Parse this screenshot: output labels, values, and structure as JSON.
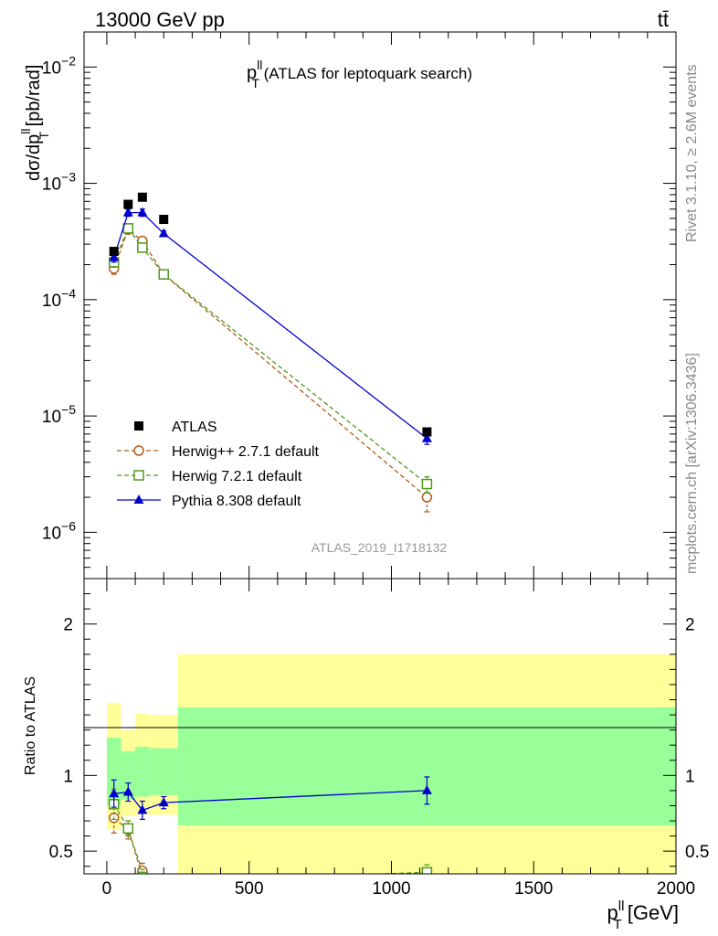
{
  "header": {
    "left": "13000 GeV pp",
    "right": "tt̄"
  },
  "side_labels": {
    "rivet": "Rivet 3.1.10, ≥ 2.6M events",
    "mcplots": "mcplots.cern.ch [arXiv:1306.3436]"
  },
  "colors": {
    "atlas": "#000000",
    "herwigpp": "#b25d1a",
    "herwig7": "#4f9a1c",
    "pythia": "#0000cc",
    "band_inner": "#99ff99",
    "band_outer": "#ffff99",
    "side_text": "#888888"
  },
  "chart_data": [
    {
      "type": "scatter",
      "title_main": "p",
      "title_sup": "ll",
      "title_sub": "T",
      "title_rest": " (ATLAS for leptoquark search)",
      "watermark": "ATLAS_2019_I1718132",
      "ylabel_main": "dσ/dp",
      "ylabel_sup": "ll",
      "ylabel_sub": "T",
      "ylabel_rest": " [pb/rad]",
      "yscale": "log",
      "ylim": [
        4e-07,
        0.02
      ],
      "xlim": [
        -80,
        2000
      ],
      "y_ticks": [
        {
          "value": 0.01,
          "mantissa": "10",
          "exp": "−2"
        },
        {
          "value": 0.001,
          "mantissa": "10",
          "exp": "−3"
        },
        {
          "value": 0.0001,
          "mantissa": "10",
          "exp": "−4"
        },
        {
          "value": 1e-05,
          "mantissa": "10",
          "exp": "−5"
        },
        {
          "value": 1e-06,
          "mantissa": "10",
          "exp": "−6"
        }
      ],
      "legend_position": "lower-left",
      "series": [
        {
          "name": "ATLAS",
          "style": "data",
          "marker": "square-filled",
          "color": "#000000",
          "x": [
            25,
            75,
            125,
            200,
            1125
          ],
          "y": [
            0.00026,
            0.00066,
            0.00076,
            0.00049,
            7.3e-06
          ],
          "yerr": [
            1e-05,
            2e-05,
            2e-05,
            1e-05,
            4e-07
          ]
        },
        {
          "name": "Herwig++ 2.7.1 default",
          "style": "dashed",
          "marker": "circle-open",
          "color": "#b25d1a",
          "x": [
            25,
            75,
            125,
            200,
            1125
          ],
          "y": [
            0.000185,
            0.0004,
            0.00032,
            0.000165,
            2e-06
          ],
          "yerr": [
            2e-05,
            2e-05,
            2e-05,
            1e-05,
            5e-07
          ]
        },
        {
          "name": "Herwig 7.2.1 default",
          "style": "dashed",
          "marker": "square-open",
          "color": "#4f9a1c",
          "x": [
            25,
            75,
            125,
            200,
            1125
          ],
          "y": [
            0.00021,
            0.00041,
            0.00028,
            0.000165,
            2.6e-06
          ],
          "yerr": [
            2e-05,
            2e-05,
            2e-05,
            1e-05,
            4e-07
          ]
        },
        {
          "name": "Pythia 8.308 default",
          "style": "solid",
          "marker": "triangle-filled",
          "color": "#0000cc",
          "x": [
            25,
            75,
            125,
            200,
            1125
          ],
          "y": [
            0.00023,
            0.00056,
            0.00056,
            0.00037,
            6.4e-06
          ],
          "yerr": [
            2e-05,
            4e-05,
            4e-05,
            2e-05,
            7e-07
          ]
        }
      ]
    },
    {
      "type": "scatter",
      "ylabel": "Ratio to ATLAS",
      "xlabel_main": "p",
      "xlabel_sup": "ll",
      "xlabel_sub": "T",
      "xlabel_rest": " [GeV]",
      "ylim": [
        0.35,
        2.3
      ],
      "xlim": [
        -80,
        2000
      ],
      "x_ticks": [
        0,
        500,
        1000,
        1500,
        2000
      ],
      "x_tick_labels": [
        "0",
        "500",
        "1000",
        "1500",
        "2000"
      ],
      "y_ticks": [
        0.5,
        1,
        2
      ],
      "y_tick_labels": [
        "0.5",
        "1",
        "2"
      ],
      "bands": [
        {
          "xmin": 0,
          "xmax": 50,
          "inner": [
            0.8,
            1.25
          ],
          "outer": [
            0.64,
            1.48
          ]
        },
        {
          "xmin": 50,
          "xmax": 100,
          "inner": [
            0.84,
            1.16
          ],
          "outer": [
            0.73,
            1.3
          ]
        },
        {
          "xmin": 100,
          "xmax": 150,
          "inner": [
            0.86,
            1.19
          ],
          "outer": [
            0.74,
            1.41
          ]
        },
        {
          "xmin": 150,
          "xmax": 250,
          "inner": [
            0.87,
            1.18
          ],
          "outer": [
            0.74,
            1.4
          ]
        },
        {
          "xmin": 250,
          "xmax": 2000,
          "inner": [
            0.67,
            1.45
          ],
          "outer": [
            0.35,
            1.8
          ]
        }
      ],
      "series": [
        {
          "name": "Herwig++ 2.7.1 default",
          "style": "dashed",
          "marker": "circle-open",
          "color": "#b25d1a",
          "x": [
            25,
            75,
            125,
            200,
            1125
          ],
          "y": [
            0.72,
            0.64,
            0.37,
            0.3,
            0.27
          ],
          "yerr": [
            0.1,
            0.06,
            0.05,
            0.03,
            0.05
          ]
        },
        {
          "name": "Herwig 7.2.1 default",
          "style": "dashed",
          "marker": "square-open",
          "color": "#4f9a1c",
          "x": [
            25,
            75,
            125,
            200,
            1125
          ],
          "y": [
            0.81,
            0.65,
            0.33,
            0.3,
            0.36
          ],
          "yerr": [
            0.1,
            0.05,
            0.05,
            0.03,
            0.05
          ]
        },
        {
          "name": "Pythia 8.308 default",
          "style": "solid",
          "marker": "triangle-filled",
          "color": "#0000cc",
          "x": [
            25,
            75,
            125,
            200,
            1125
          ],
          "y": [
            0.88,
            0.89,
            0.77,
            0.82,
            0.9
          ],
          "yerr": [
            0.09,
            0.06,
            0.06,
            0.04,
            0.09
          ]
        }
      ]
    }
  ]
}
